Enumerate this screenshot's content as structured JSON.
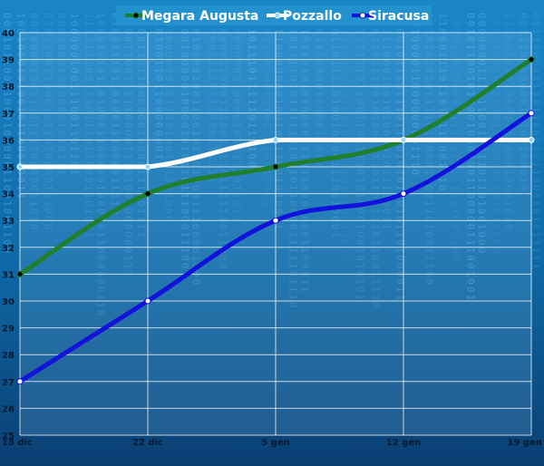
{
  "chart_data": {
    "type": "line",
    "categories": [
      "15 dic",
      "22 dic",
      "5 gen",
      "12 gen",
      "19 gen"
    ],
    "series": [
      {
        "name": "Megara Augusta",
        "values": [
          31,
          34,
          35,
          36,
          39
        ],
        "color": "#1f7f2a"
      },
      {
        "name": "Pozzallo",
        "values": [
          35,
          35,
          36,
          36,
          36
        ],
        "color": "#ffffff"
      },
      {
        "name": "Siracusa",
        "values": [
          27,
          30,
          33,
          34,
          37
        ],
        "color": "#1212dc"
      }
    ],
    "yticks": [
      "25",
      "26",
      "27",
      "28",
      "29",
      "30",
      "31",
      "32",
      "33",
      "34",
      "35",
      "36",
      "37",
      "38",
      "39",
      "40"
    ],
    "ylim": [
      25,
      40
    ],
    "grid": true,
    "legend_position": "top"
  }
}
